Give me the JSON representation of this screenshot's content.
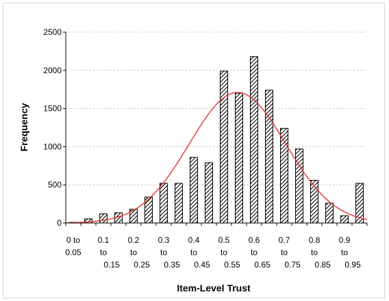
{
  "chart_data": {
    "type": "bar",
    "xlabel": "Item-Level Trust",
    "ylabel": "Frequency",
    "ylim": [
      0,
      2500
    ],
    "yticks": [
      "0",
      "500",
      "1000",
      "1500",
      "2000",
      "2500"
    ],
    "grid": "horizontal-dotted",
    "x_tick_labels": [
      [
        "0 to",
        "0.05"
      ],
      [
        "0.1",
        "to",
        "0.15"
      ],
      [
        "0.2",
        "to",
        "0.25"
      ],
      [
        "0.3",
        "to",
        "0.35"
      ],
      [
        "0.4",
        "to",
        "0.45"
      ],
      [
        "0.5",
        "to",
        "0.55"
      ],
      [
        "0.6",
        "to",
        "0.65"
      ],
      [
        "0.7",
        "to",
        "0.75"
      ],
      [
        "0.8",
        "to",
        "0.85"
      ],
      [
        "0.9",
        "to",
        "0.95"
      ]
    ],
    "categories": [
      "0",
      "0.05",
      "0.1",
      "0.15",
      "0.2",
      "0.25",
      "0.3",
      "0.35",
      "0.4",
      "0.45",
      "0.5",
      "0.55",
      "0.6",
      "0.65",
      "0.7",
      "0.75",
      "0.8",
      "0.85",
      "0.9",
      "0.95"
    ],
    "values": [
      10,
      55,
      120,
      135,
      180,
      340,
      520,
      520,
      860,
      790,
      1990,
      1700,
      2180,
      1740,
      1240,
      970,
      560,
      260,
      95,
      520
    ],
    "bar_fill": "diagonal-hatch",
    "bar_color": "#000000",
    "fit_curve": {
      "type": "normal",
      "color": "#e0413a",
      "peak": 1710,
      "mean": 0.57,
      "sd": 0.16
    }
  }
}
